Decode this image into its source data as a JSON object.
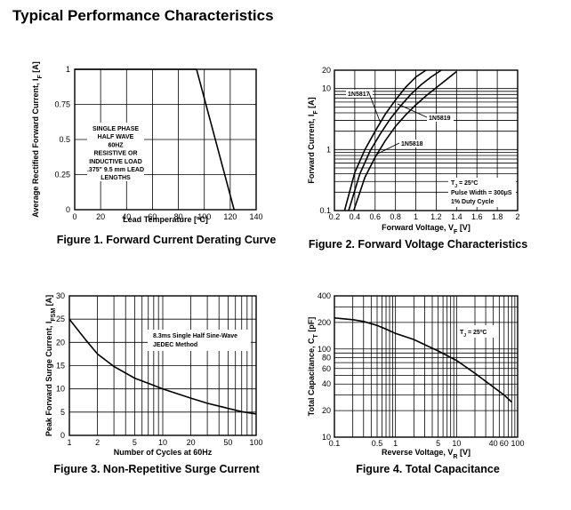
{
  "page_title": "Typical Performance Characteristics",
  "chart_data": [
    {
      "type": "line",
      "caption": "Figure 1. Forward Current Derating Curve",
      "xlabel": "Lead Temperature [ºC]",
      "ylabel_parts": [
        "Average Rectified Forward Current, I",
        "F",
        " [A]"
      ],
      "xlim": [
        0,
        140
      ],
      "ylim": [
        0,
        1
      ],
      "x_ticks": [
        0,
        20,
        40,
        60,
        80,
        100,
        120,
        140
      ],
      "y_ticks": [
        0,
        0.25,
        0.5,
        0.75,
        1
      ],
      "x_tick_labels": [
        "0",
        "20",
        "40",
        "60",
        "80",
        "100",
        "120",
        "140"
      ],
      "y_tick_labels": [
        "0",
        "0.25",
        "0.5",
        "0.75",
        "1"
      ],
      "series": [
        {
          "x": [
            0,
            94,
            123
          ],
          "y": [
            1,
            1,
            0
          ]
        }
      ],
      "annotation": [
        "SINGLE PHASE",
        "HALF WAVE",
        "60HZ",
        "RESISTIVE OR",
        "INDUCTIVE LOAD",
        ".375\" 9.5 mm LEAD",
        "LENGTHS"
      ],
      "grid": true
    },
    {
      "type": "line",
      "caption": "Figure 2. Forward Voltage Characteristics",
      "xlabel_parts": [
        "Forward Voltage, V",
        "F",
        " [V]"
      ],
      "ylabel_parts": [
        "Forward Current, I",
        "F",
        " [A]"
      ],
      "xlim": [
        0.2,
        2
      ],
      "ylim": [
        0.1,
        20
      ],
      "yscale": "log",
      "x_ticks": [
        0.2,
        0.4,
        0.6,
        0.8,
        1,
        1.2,
        1.4,
        1.6,
        1.8,
        2
      ],
      "x_tick_labels": [
        "0.2",
        "0.4",
        "0.6",
        "0.8",
        "1",
        "1.2",
        "1.4",
        "1.6",
        "1.8",
        "2"
      ],
      "y_tick_labels": [
        {
          "v": 0.1,
          "t": "0.1"
        },
        {
          "v": 1,
          "t": "1"
        },
        {
          "v": 10,
          "t": "10"
        },
        {
          "v": 20,
          "t": "20"
        }
      ],
      "series": [
        {
          "name": "1N5817",
          "x": [
            0.3,
            0.4,
            0.5,
            0.6,
            0.7,
            0.8,
            0.9,
            1.0,
            1.1
          ],
          "y": [
            0.1,
            0.42,
            1.0,
            2.0,
            3.8,
            6.5,
            10.5,
            15.5,
            20
          ]
        },
        {
          "name": "1N5819",
          "x": [
            0.34,
            0.45,
            0.55,
            0.65,
            0.75,
            0.85,
            0.95,
            1.05,
            1.15,
            1.25
          ],
          "y": [
            0.1,
            0.4,
            0.95,
            1.8,
            3.2,
            5.2,
            8.0,
            11.5,
            15.5,
            20
          ]
        },
        {
          "name": "1N5818",
          "x": [
            0.39,
            0.5,
            0.6,
            0.7,
            0.8,
            0.9,
            1.0,
            1.1,
            1.2,
            1.3,
            1.4
          ],
          "y": [
            0.1,
            0.35,
            0.75,
            1.4,
            2.4,
            3.7,
            5.4,
            7.6,
            10.3,
            14.0,
            19.0
          ]
        }
      ],
      "annotation": [
        "T_J = 25ºC",
        "Pulse Width = 300μS",
        "1% Duty Cycle"
      ],
      "grid": true
    },
    {
      "type": "line",
      "caption": "Figure 3. Non-Repetitive Surge Current",
      "xlabel": "Number of Cycles at 60Hz",
      "ylabel_parts": [
        "Peak Forward Surge Current, I",
        "FSM",
        " [A]"
      ],
      "xlim": [
        1,
        100
      ],
      "xscale": "log",
      "ylim": [
        0,
        30
      ],
      "x_tick_labels": [
        {
          "v": 1,
          "t": "1"
        },
        {
          "v": 2,
          "t": "2"
        },
        {
          "v": 5,
          "t": "5"
        },
        {
          "v": 10,
          "t": "10"
        },
        {
          "v": 20,
          "t": "20"
        },
        {
          "v": 50,
          "t": "50"
        },
        {
          "v": 100,
          "t": "100"
        }
      ],
      "y_ticks": [
        0,
        5,
        10,
        15,
        20,
        25,
        30
      ],
      "y_tick_labels": [
        "0",
        "5",
        "10",
        "15",
        "20",
        "25",
        "30"
      ],
      "series": [
        {
          "x": [
            1,
            1.5,
            2,
            3,
            5,
            7,
            10,
            20,
            30,
            50,
            70,
            100
          ],
          "y": [
            25,
            20.5,
            17.5,
            14.8,
            12.3,
            11.2,
            10.0,
            8.0,
            6.9,
            5.8,
            5.1,
            4.6
          ]
        }
      ],
      "annotation": [
        "8.3ms Single Half Sine-Wave",
        "JEDEC Method"
      ],
      "grid": true
    },
    {
      "type": "line",
      "caption": "Figure 4. Total Capacitance",
      "xlabel_parts": [
        "Reverse Voltage, V",
        "R",
        " [V]"
      ],
      "ylabel_parts": [
        "Total Capacitance, C",
        "T",
        " [pF]"
      ],
      "xlim": [
        0.1,
        100
      ],
      "xscale": "log",
      "ylim": [
        10,
        400
      ],
      "yscale": "log",
      "x_tick_labels": [
        {
          "v": 0.1,
          "t": "0.1"
        },
        {
          "v": 0.5,
          "t": "0.5"
        },
        {
          "v": 1,
          "t": "1"
        },
        {
          "v": 5,
          "t": "5"
        },
        {
          "v": 10,
          "t": "10"
        },
        {
          "v": 40,
          "t": "40"
        },
        {
          "v": 60,
          "t": "60"
        },
        {
          "v": 100,
          "t": "100"
        }
      ],
      "y_tick_labels": [
        {
          "v": 10,
          "t": "10"
        },
        {
          "v": 20,
          "t": "20"
        },
        {
          "v": 40,
          "t": "40"
        },
        {
          "v": 60,
          "t": "60"
        },
        {
          "v": 80,
          "t": "80"
        },
        {
          "v": 100,
          "t": "100"
        },
        {
          "v": 200,
          "t": "200"
        },
        {
          "v": 400,
          "t": "400"
        }
      ],
      "series": [
        {
          "x": [
            0.1,
            0.2,
            0.3,
            0.5,
            0.7,
            1,
            2,
            3,
            5,
            10,
            20,
            40,
            60,
            80
          ],
          "y": [
            225,
            215,
            205,
            185,
            168,
            150,
            128,
            112,
            95,
            74,
            53,
            37,
            30,
            25
          ]
        }
      ],
      "annotation": [
        "T_J = 25ºC"
      ],
      "grid": true
    }
  ]
}
